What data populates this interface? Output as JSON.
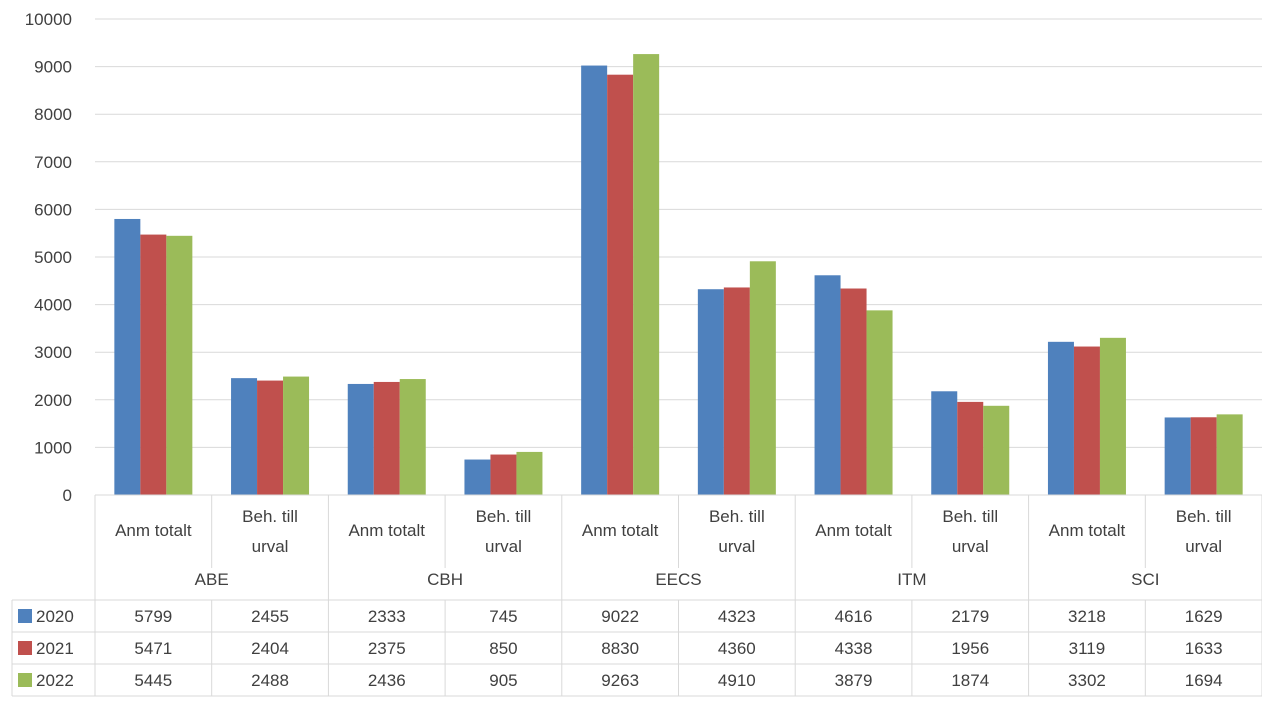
{
  "chart_data": {
    "type": "bar",
    "groups": [
      "ABE",
      "CBH",
      "EECS",
      "ITM",
      "SCI"
    ],
    "subcategories": [
      [
        "Anm totalt"
      ],
      [
        "Beh. till",
        "urval"
      ]
    ],
    "series": [
      {
        "name": "2020",
        "color": "#4F81BD",
        "values": [
          5799,
          2455,
          2333,
          745,
          9022,
          4323,
          4616,
          2179,
          3218,
          1629
        ]
      },
      {
        "name": "2021",
        "color": "#C0504D",
        "values": [
          5471,
          2404,
          2375,
          850,
          8830,
          4360,
          4338,
          1956,
          3119,
          1633
        ]
      },
      {
        "name": "2022",
        "color": "#9BBB59",
        "values": [
          5445,
          2488,
          2436,
          905,
          9263,
          4910,
          3879,
          1874,
          3302,
          1694
        ]
      }
    ],
    "yticks": [
      "0",
      "1000",
      "2000",
      "3000",
      "4000",
      "5000",
      "6000",
      "7000",
      "8000",
      "9000",
      "10000"
    ],
    "ylim": [
      0,
      10000
    ],
    "grid": true,
    "legend": "data-table"
  }
}
